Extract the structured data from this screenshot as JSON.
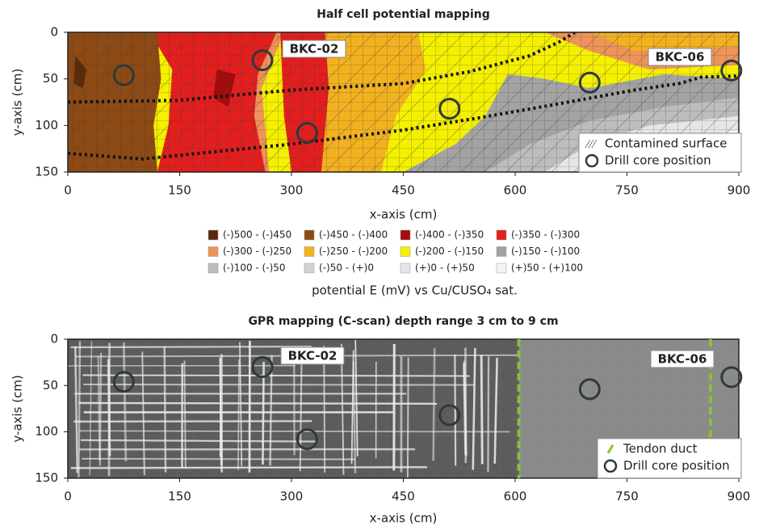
{
  "chart_data": [
    {
      "type": "contour",
      "title": "Half cell potential mapping",
      "xlabel": "x-axis (cm)",
      "ylabel": "y-axis (cm)",
      "xlim": [
        0,
        900
      ],
      "ylim": [
        150,
        0
      ],
      "xticks": [
        0,
        150,
        300,
        450,
        600,
        750,
        900
      ],
      "yticks": [
        0,
        50,
        100,
        150
      ],
      "annotations": [
        "BKC-02",
        "BKC-06"
      ],
      "hatch_legend": "Contamined surface",
      "series": [
        {
          "name": "Drill core position",
          "color": "#2e3a3a",
          "x": [
            75,
            261,
            321,
            512,
            700,
            890
          ],
          "y": [
            46,
            30,
            108,
            82,
            54,
            41
          ]
        }
      ],
      "colorbar": {
        "title": "potential E (mV) vs Cu/CUSO₄ sat.",
        "labels": [
          "(-)500 - (-)450",
          "(-)450 - (-)400",
          "(-)400 - (-)350",
          "(-)350 - (-)300",
          "(-)300 - (-)250",
          "(-)250 - (-)200",
          "(-)200 - (-)150",
          "(-)150 - (-)100",
          "(-)100 - (-)50",
          "(-)50 - (+)0",
          "(+)0 - (+)50",
          "(+)50 - (+)100"
        ],
        "colors": [
          "#5a2a0a",
          "#8e4a14",
          "#a30c0c",
          "#e31e1e",
          "#ee9458",
          "#f2b11f",
          "#f4f000",
          "#a3a3a3",
          "#bdbdbd",
          "#d2d2d2",
          "#e6e6e6",
          "#f4f4f4"
        ]
      }
    },
    {
      "type": "gpr",
      "title": "GPR mapping (C-scan) depth range 3 cm to 9 cm",
      "xlabel": "x-axis (cm)",
      "ylabel": "y-axis (cm)",
      "xlim": [
        0,
        900
      ],
      "ylim": [
        150,
        0
      ],
      "xticks": [
        0,
        150,
        300,
        450,
        600,
        750,
        900
      ],
      "yticks": [
        0,
        50,
        100,
        150
      ],
      "annotations": [
        "BKC-02",
        "BKC-06"
      ],
      "series": [
        {
          "name": "Tendon duct",
          "color": "#8cbf3a",
          "x": [
            605,
            862
          ]
        },
        {
          "name": "Drill core position",
          "color": "#2e3a3a",
          "x": [
            75,
            261,
            321,
            512,
            700,
            890
          ],
          "y": [
            46,
            30,
            108,
            82,
            54,
            41
          ]
        }
      ]
    }
  ]
}
